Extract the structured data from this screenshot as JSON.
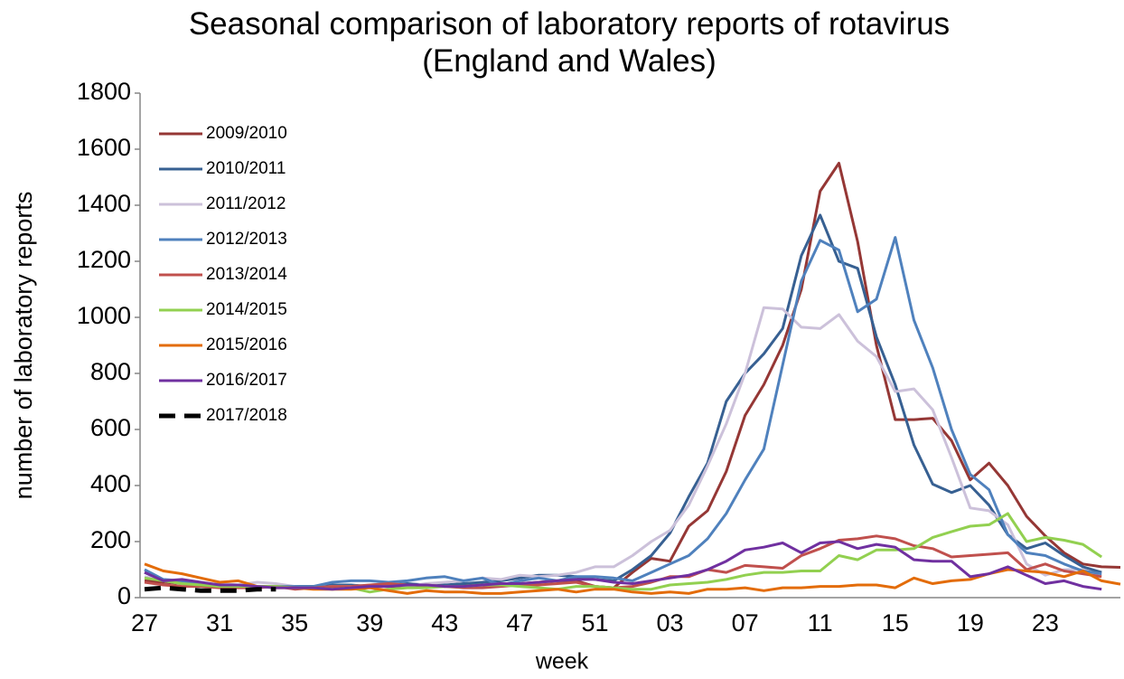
{
  "chart_data": {
    "type": "line",
    "title": "Seasonal comparison of laboratory reports of rotavirus (England and Wales)",
    "x_label": "week",
    "y_label": "number of laboratory reports",
    "categories": [
      "27",
      null,
      null,
      null,
      "31",
      null,
      null,
      null,
      "35",
      null,
      null,
      null,
      "39",
      null,
      null,
      null,
      "43",
      null,
      null,
      null,
      "47",
      null,
      null,
      null,
      "51",
      null,
      null,
      null,
      "03",
      null,
      null,
      null,
      "07",
      null,
      null,
      null,
      "11",
      null,
      null,
      null,
      "15",
      null,
      null,
      null,
      "19",
      null,
      null,
      null,
      "23",
      null,
      null,
      null,
      null
    ],
    "ylim": [
      0,
      1800
    ],
    "yticks": [
      0,
      200,
      400,
      600,
      800,
      1000,
      1200,
      1400,
      1600,
      1800
    ],
    "grid": false,
    "legend": "top-left",
    "series": [
      {
        "name": "2009/2010",
        "color": "#953735",
        "values": [
          60,
          55,
          50,
          45,
          45,
          40,
          40,
          40,
          40,
          40,
          40,
          40,
          40,
          40,
          40,
          40,
          40,
          45,
          45,
          50,
          50,
          55,
          60,
          60,
          40,
          35,
          90,
          140,
          130,
          255,
          310,
          450,
          650,
          760,
          900,
          1100,
          1450,
          1550,
          1270,
          900,
          635,
          635,
          640,
          560,
          420,
          480,
          400,
          290,
          220,
          160,
          120,
          110,
          108
        ]
      },
      {
        "name": "2010/2011",
        "color": "#376092",
        "values": [
          90,
          60,
          55,
          50,
          45,
          40,
          40,
          40,
          40,
          40,
          45,
          45,
          40,
          45,
          50,
          45,
          45,
          50,
          55,
          60,
          70,
          80,
          80,
          75,
          65,
          60,
          100,
          150,
          230,
          360,
          480,
          700,
          800,
          870,
          960,
          1220,
          1365,
          1200,
          1175,
          930,
          760,
          545,
          405,
          375,
          400,
          330,
          225,
          175,
          195,
          150,
          110,
          90,
          null
        ]
      },
      {
        "name": "2011/2012",
        "color": "#ccc1da",
        "values": [
          75,
          60,
          50,
          45,
          50,
          45,
          55,
          50,
          40,
          35,
          40,
          40,
          45,
          50,
          40,
          50,
          55,
          60,
          70,
          65,
          80,
          75,
          80,
          90,
          110,
          110,
          150,
          200,
          240,
          330,
          470,
          620,
          800,
          1035,
          1030,
          965,
          960,
          1010,
          915,
          860,
          735,
          745,
          670,
          500,
          320,
          310,
          260,
          120,
          80,
          100,
          100,
          80,
          null
        ]
      },
      {
        "name": "2012/2013",
        "color": "#4f81bd",
        "values": [
          100,
          65,
          60,
          50,
          45,
          40,
          40,
          40,
          40,
          40,
          55,
          60,
          60,
          55,
          60,
          70,
          75,
          60,
          70,
          45,
          60,
          70,
          60,
          75,
          75,
          70,
          60,
          90,
          120,
          150,
          210,
          300,
          420,
          530,
          830,
          1130,
          1275,
          1240,
          1020,
          1065,
          1285,
          990,
          820,
          600,
          440,
          385,
          225,
          160,
          150,
          120,
          95,
          85,
          null
        ]
      },
      {
        "name": "2013/2014",
        "color": "#c0504d",
        "values": [
          55,
          45,
          40,
          40,
          35,
          35,
          35,
          40,
          30,
          35,
          40,
          40,
          45,
          50,
          45,
          45,
          40,
          35,
          35,
          40,
          45,
          45,
          50,
          55,
          40,
          35,
          40,
          55,
          75,
          75,
          100,
          90,
          115,
          110,
          105,
          150,
          175,
          205,
          210,
          220,
          210,
          185,
          175,
          145,
          150,
          155,
          160,
          100,
          120,
          95,
          85,
          75,
          null
        ]
      },
      {
        "name": "2014/2015",
        "color": "#92d050",
        "values": [
          70,
          60,
          50,
          45,
          40,
          40,
          40,
          40,
          35,
          35,
          30,
          35,
          20,
          30,
          35,
          35,
          40,
          40,
          45,
          45,
          40,
          35,
          30,
          40,
          40,
          35,
          30,
          30,
          45,
          50,
          55,
          65,
          80,
          90,
          90,
          95,
          95,
          150,
          135,
          170,
          170,
          175,
          215,
          235,
          255,
          260,
          300,
          200,
          215,
          205,
          190,
          145,
          null
        ]
      },
      {
        "name": "2015/2016",
        "color": "#e36c09",
        "values": [
          120,
          95,
          85,
          70,
          55,
          60,
          40,
          35,
          35,
          30,
          30,
          30,
          35,
          25,
          15,
          25,
          20,
          20,
          15,
          15,
          20,
          25,
          30,
          20,
          30,
          30,
          20,
          15,
          20,
          15,
          30,
          30,
          35,
          25,
          35,
          35,
          40,
          40,
          45,
          45,
          35,
          70,
          50,
          60,
          65,
          85,
          100,
          95,
          90,
          75,
          95,
          60,
          48
        ]
      },
      {
        "name": "2016/2017",
        "color": "#7030a0",
        "values": [
          90,
          60,
          65,
          55,
          45,
          45,
          40,
          35,
          35,
          35,
          30,
          35,
          40,
          40,
          45,
          45,
          40,
          40,
          45,
          50,
          50,
          55,
          60,
          65,
          65,
          55,
          50,
          60,
          70,
          80,
          100,
          130,
          170,
          180,
          195,
          160,
          195,
          200,
          175,
          190,
          180,
          135,
          130,
          130,
          75,
          85,
          110,
          80,
          50,
          60,
          40,
          30,
          null
        ]
      },
      {
        "name": "2017/2018",
        "color": "#000000",
        "dash": true,
        "values": [
          30,
          35,
          30,
          25,
          25,
          25,
          30,
          30,
          null,
          null,
          null,
          null,
          null,
          null,
          null,
          null,
          null,
          null,
          null,
          null,
          null,
          null,
          null,
          null,
          null,
          null,
          null,
          null,
          null,
          null,
          null,
          null,
          null,
          null,
          null,
          null,
          null,
          null,
          null,
          null,
          null,
          null,
          null,
          null,
          null,
          null,
          null,
          null,
          null,
          null,
          null,
          null,
          null
        ]
      }
    ]
  }
}
